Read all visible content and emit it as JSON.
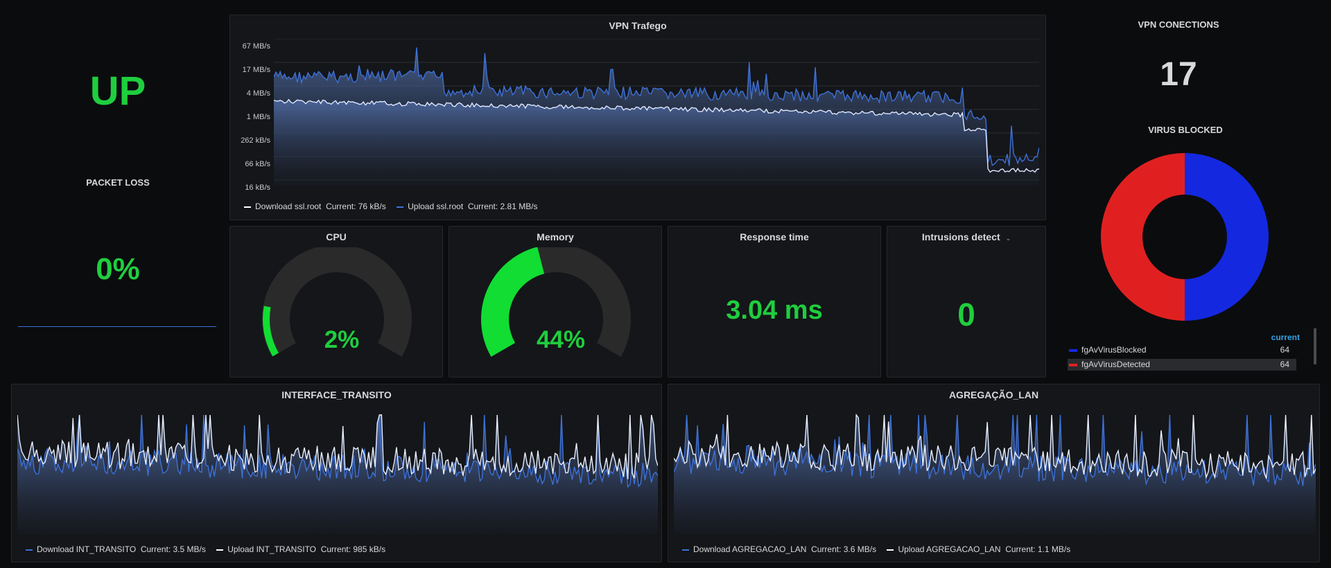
{
  "status": {
    "value": "UP",
    "color": "#1fce3e"
  },
  "packet_loss": {
    "title": "PACKET LOSS",
    "value": "0%"
  },
  "vpn_traffic": {
    "title": "VPN Trafego",
    "y_ticks": [
      "67 MB/s",
      "17 MB/s",
      "4 MB/s",
      "1 MB/s",
      "262 kB/s",
      "66 kB/s",
      "16 kB/s"
    ],
    "legend": [
      {
        "name": "Download ssl.root",
        "current": "Current: 76 kB/s",
        "color": "#ffffff"
      },
      {
        "name": "Upload ssl.root",
        "current": "Current: 2.81 MB/s",
        "color": "#3d71d9"
      }
    ]
  },
  "vpn_connections": {
    "title": "VPN CONECTIONS",
    "value": "17"
  },
  "virus_blocked": {
    "title": "VIRUS BLOCKED",
    "legend_header": "current",
    "items": [
      {
        "name": "fgAvVirusBlocked",
        "value": "64",
        "color": "#1428e0"
      },
      {
        "name": "fgAvVirusDetected",
        "value": "64",
        "color": "#e02020"
      }
    ]
  },
  "cpu": {
    "title": "CPU",
    "value": "2%",
    "fraction": 0.02
  },
  "memory": {
    "title": "Memory",
    "value": "44%",
    "fraction": 0.44
  },
  "response_time": {
    "title": "Response time",
    "value": "3.04 ms"
  },
  "intrusions": {
    "title": "Intrusions detect",
    "value": "0",
    "dropdown_icon": "chevron-down-icon"
  },
  "interface_transito": {
    "title": "INTERFACE_TRANSITO",
    "legend": [
      {
        "name": "Download INT_TRANSITO",
        "current": "Current: 3.5 MB/s",
        "color": "#3d71d9"
      },
      {
        "name": "Upload INT_TRANSITO",
        "current": "Current: 985 kB/s",
        "color": "#ffffff"
      }
    ]
  },
  "agregacao_lan": {
    "title": "AGREGAÇÃO_LAN",
    "legend": [
      {
        "name": "Download AGREGACAO_LAN",
        "current": "Current: 3.6 MB/s",
        "color": "#3d71d9"
      },
      {
        "name": "Upload AGREGACAO_LAN",
        "current": "Current: 1.1 MB/s",
        "color": "#ffffff"
      }
    ]
  },
  "colors": {
    "green": "#1fce3e",
    "gauge_track": "#2a2a2a",
    "panel_bg": "#141619",
    "accent_blue": "#3d71d9"
  }
}
